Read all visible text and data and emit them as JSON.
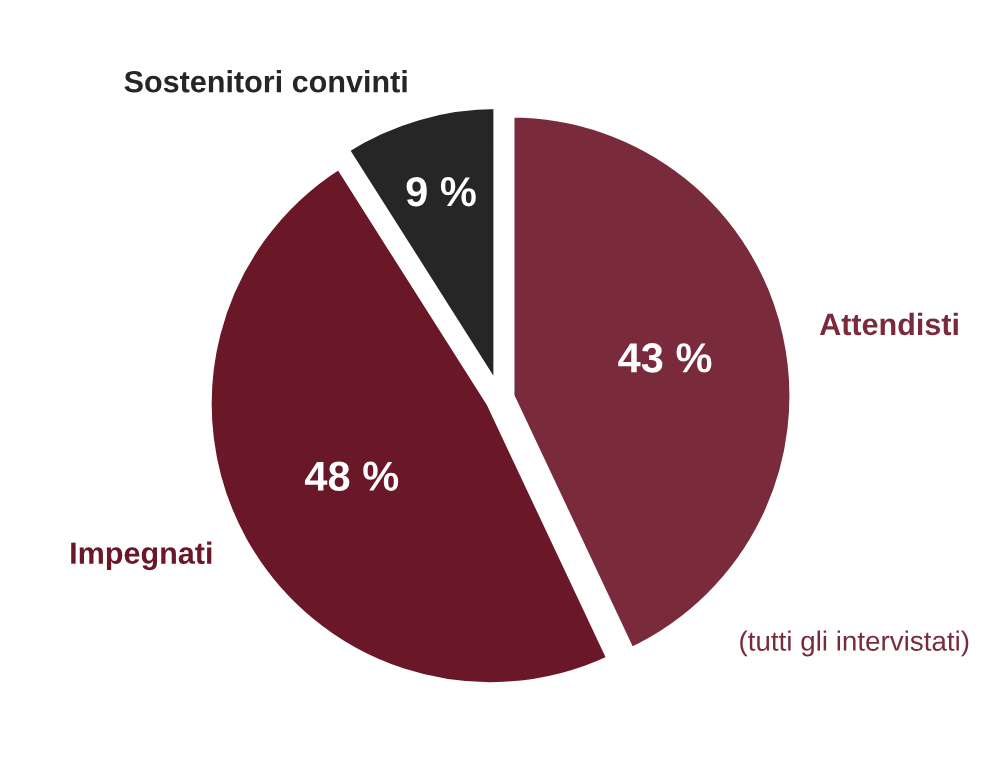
{
  "chart_data": {
    "type": "pie",
    "categories": [
      "Attendisti",
      "Impegnati",
      "Sostenitori convinti"
    ],
    "values": [
      43,
      48,
      9
    ],
    "colors": [
      "#7a2b3b",
      "#6a1728",
      "#262626"
    ],
    "value_labels": [
      "43 %",
      "48 %",
      "9 %"
    ],
    "annotations": [
      "(tutti gli intervistati)"
    ]
  }
}
